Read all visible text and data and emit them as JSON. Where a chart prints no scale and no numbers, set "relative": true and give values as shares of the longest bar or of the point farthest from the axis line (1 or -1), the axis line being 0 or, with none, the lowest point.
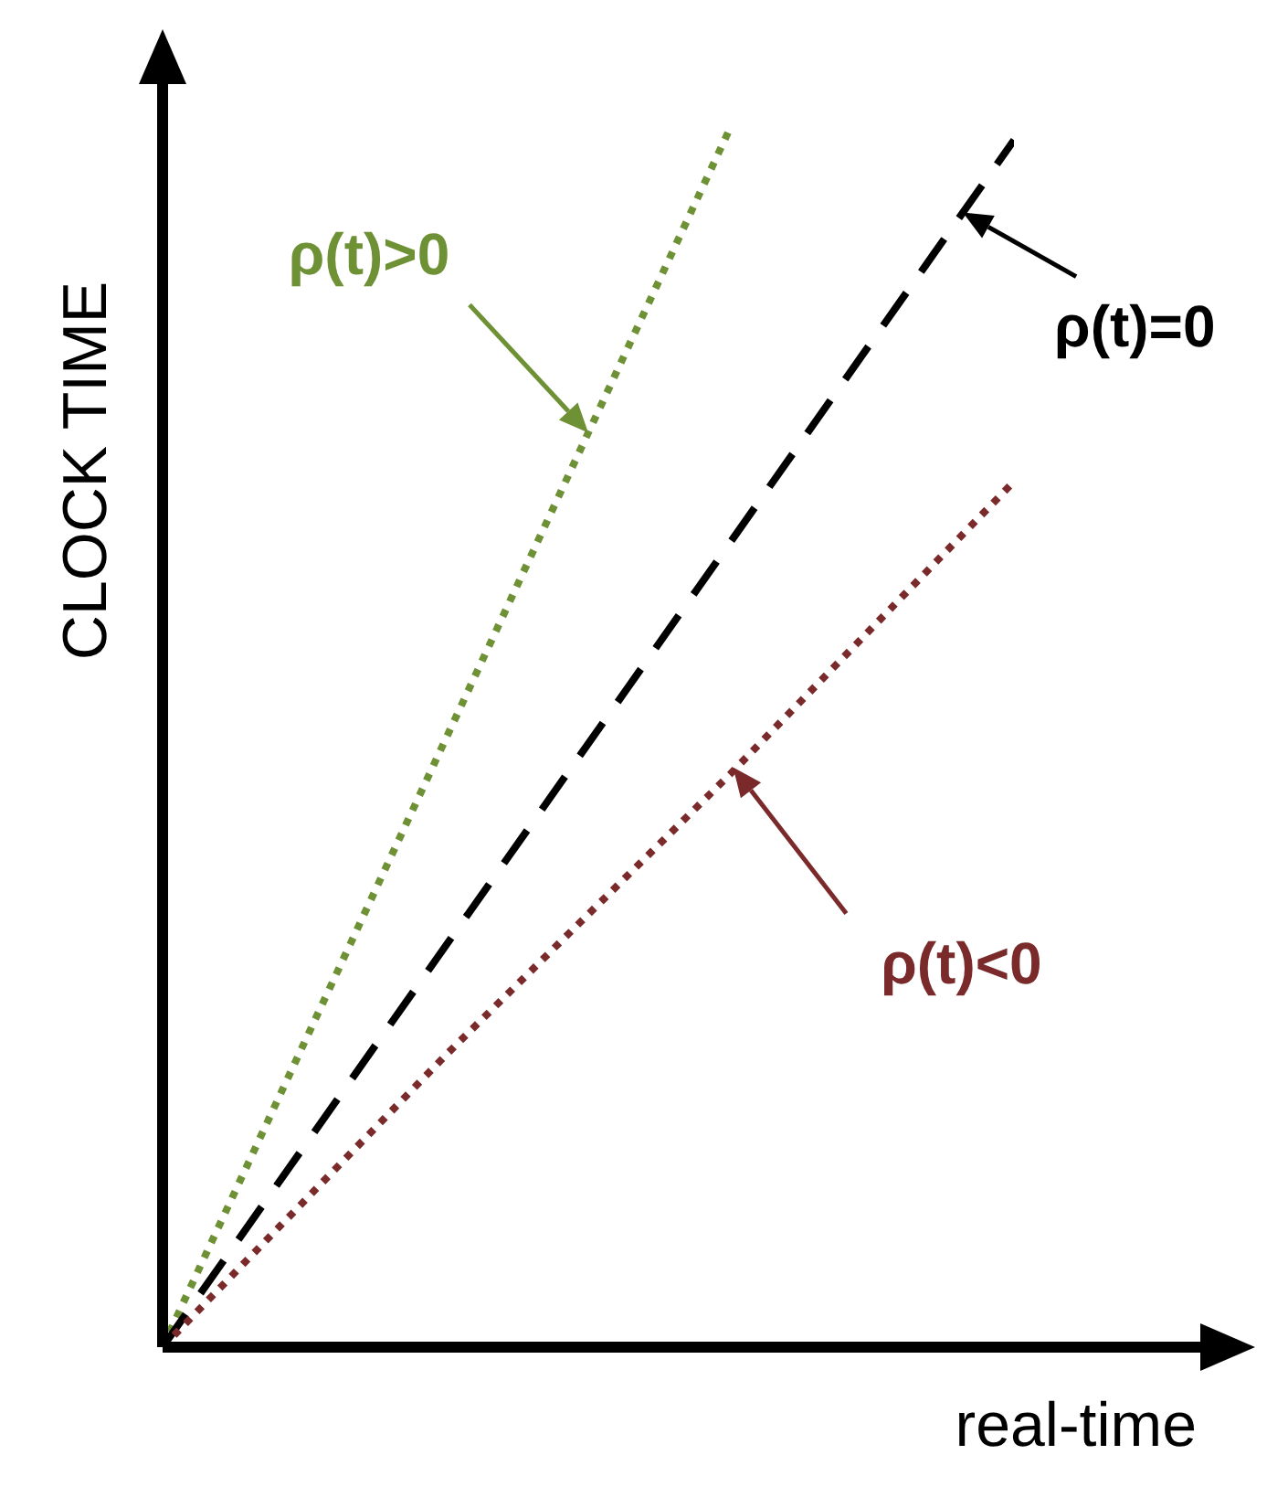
{
  "chart_data": {
    "type": "line",
    "relative": true,
    "xlabel": "real-time",
    "ylabel": "CLOCK TIME",
    "marker": "none",
    "grid": false,
    "categories": [
      null,
      null,
      null,
      null
    ],
    "series": [
      {
        "color": "#6f9135",
        "line_style": "dotted",
        "values": [
          0,
          0.5,
          1,
          null
        ]
      },
      {
        "color": "#000000",
        "line_style": "dashed",
        "values": [
          0,
          0.33,
          0.66,
          0.99
        ]
      },
      {
        "color": "#7a2a2a",
        "line_style": "dotted",
        "values": [
          0,
          0.24,
          0.47,
          0.71
        ]
      }
    ],
    "annotations": [
      "ρ(t)>0",
      "ρ(t)=0",
      "ρ(t)<0"
    ]
  }
}
